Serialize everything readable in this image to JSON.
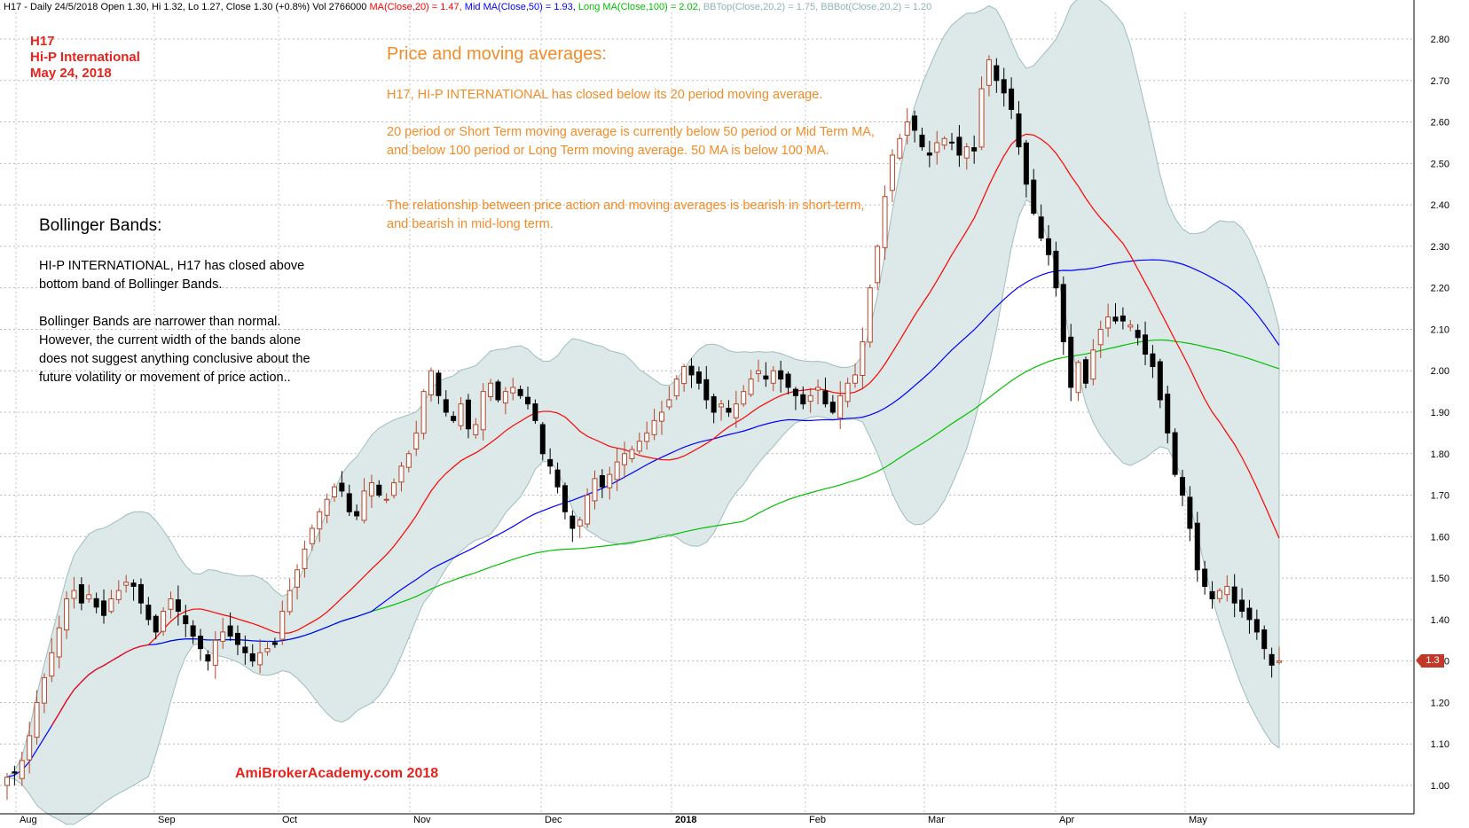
{
  "header": {
    "ohlc_text": "H17 - Daily 24/5/2018 Open 1.30, Hi 1.32, Lo 1.27, Close 1.30 (+0.8%) Vol 2766000",
    "ma20_text": "MA(Close,20) = 1.47,",
    "mid_ma_text": "Mid MA(Close,50) = 1.93,",
    "long_ma_text": "Long MA(Close,100) = 2.02,",
    "bbtop_text": "BBTop(Close,20,2) = 1.75,",
    "bbbot_text": "BBBot(Close,20,2) = 1.20",
    "colors": {
      "ma20": "#ff0000",
      "mid_ma": "#0000ff",
      "long_ma": "#00c000",
      "bb": "#8fb3b3"
    }
  },
  "ticker": {
    "code": "H17",
    "name": "Hi-P International",
    "date": "May 24, 2018"
  },
  "price_ma": {
    "title": "Price and moving averages:",
    "p1": "H17, HI-P INTERNATIONAL has closed below its 20 period moving average.",
    "p2": "20 period or Short Term moving average is currently below 50 period or Mid Term MA, and below 100 period or Long Term moving average. 50 MA is below 100 MA.",
    "p3": "The relationship between price action and moving averages is bearish in short-term, and bearish in mid-long term."
  },
  "bollinger": {
    "title": "Bollinger Bands:",
    "p1": "HI-P INTERNATIONAL, H17   has closed above bottom band of Bollinger Bands.",
    "p2": "Bollinger Bands are narrower than normal. However, the current width of the bands alone  does not suggest anything conclusive about the future volatility or movement of price action.."
  },
  "watermark": "AmiBrokerAcademy.com   2018",
  "last_price_tag": "1.3",
  "chart_data": {
    "type": "line",
    "yaxis": {
      "ticks": [
        "1.00",
        "1.10",
        "1.20",
        "1.30",
        "1.40",
        "1.50",
        "1.60",
        "1.70",
        "1.80",
        "1.90",
        "2.00",
        "2.10",
        "2.20",
        "2.30",
        "2.40",
        "2.50",
        "2.60",
        "2.70",
        "2.80"
      ],
      "min": 0.97,
      "max": 2.86
    },
    "months": [
      "Aug",
      "Sep",
      "Oct",
      "Nov",
      "Dec",
      "2018",
      "Feb",
      "Mar",
      "Apr",
      "May"
    ],
    "grid": true,
    "candle_closes": [
      1.02,
      1.03,
      1.06,
      1.12,
      1.2,
      1.26,
      1.32,
      1.38,
      1.45,
      1.47,
      1.44,
      1.46,
      1.43,
      1.41,
      1.45,
      1.47,
      1.49,
      1.48,
      1.44,
      1.4,
      1.37,
      1.42,
      1.45,
      1.42,
      1.39,
      1.36,
      1.33,
      1.3,
      1.35,
      1.37,
      1.36,
      1.34,
      1.32,
      1.3,
      1.32,
      1.33,
      1.34,
      1.42,
      1.47,
      1.52,
      1.57,
      1.62,
      1.66,
      1.69,
      1.72,
      1.71,
      1.66,
      1.65,
      1.71,
      1.73,
      1.7,
      1.69,
      1.73,
      1.77,
      1.8,
      1.85,
      1.95,
      2.0,
      1.94,
      1.9,
      1.88,
      1.92,
      1.86,
      1.87,
      1.95,
      1.97,
      1.93,
      1.95,
      1.96,
      1.94,
      1.92,
      1.88,
      1.8,
      1.77,
      1.72,
      1.66,
      1.62,
      1.64,
      1.7,
      1.74,
      1.72,
      1.75,
      1.78,
      1.8,
      1.81,
      1.83,
      1.85,
      1.88,
      1.9,
      1.93,
      1.98,
      2.01,
      1.99,
      1.97,
      1.93,
      1.9,
      1.92,
      1.9,
      1.92,
      1.95,
      1.98,
      2.0,
      1.98,
      2.0,
      1.98,
      1.96,
      1.94,
      1.92,
      1.94,
      1.96,
      1.92,
      1.9,
      1.94,
      1.97,
      1.99,
      2.07,
      2.2,
      2.3,
      2.42,
      2.52,
      2.56,
      2.6,
      2.58,
      2.54,
      2.52,
      2.55,
      2.56,
      2.55,
      2.52,
      2.54,
      2.53,
      2.68,
      2.75,
      2.7,
      2.67,
      2.63,
      2.54,
      2.45,
      2.38,
      2.32,
      2.28,
      2.2,
      2.07,
      1.96,
      2.02,
      1.97,
      2.05,
      2.1,
      2.13,
      2.12,
      2.12,
      2.11,
      2.08,
      2.04,
      2.01,
      1.93,
      1.85,
      1.75,
      1.7,
      1.62,
      1.52,
      1.48,
      1.45,
      1.47,
      1.48,
      1.44,
      1.42,
      1.4,
      1.37,
      1.33,
      1.29,
      1.3
    ],
    "series": [
      {
        "name": "MA(Close,20)",
        "last_value": 1.47
      },
      {
        "name": "Mid MA(Close,50)",
        "last_value": 1.93
      },
      {
        "name": "Long MA(Close,100)",
        "last_value": 2.02
      },
      {
        "name": "BBTop(Close,20,2)",
        "last_value": 1.75
      },
      {
        "name": "BBBot(Close,20,2)",
        "last_value": 1.2
      }
    ]
  }
}
